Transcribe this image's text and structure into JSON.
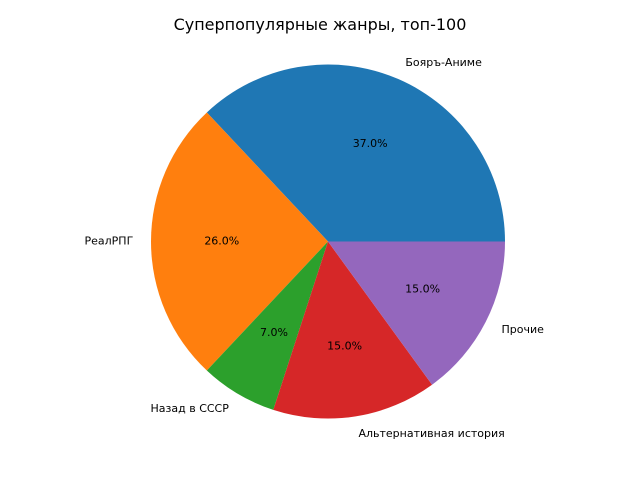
{
  "chart_data": {
    "type": "pie",
    "title": "Суперпопулярные жанры, топ-100",
    "slices": [
      {
        "label": "Бояръ-Аниме",
        "value": 37.0,
        "pct_text": "37.0%",
        "color": "#1f77b4"
      },
      {
        "label": "РеалРПГ",
        "value": 26.0,
        "pct_text": "26.0%",
        "color": "#ff7f0e"
      },
      {
        "label": "Назад в СССР",
        "value": 7.0,
        "pct_text": "7.0%",
        "color": "#2ca02c"
      },
      {
        "label": "Альтернативная история",
        "value": 15.0,
        "pct_text": "15.0%",
        "color": "#d62728"
      },
      {
        "label": "Прочие",
        "value": 15.0,
        "pct_text": "15.0%",
        "color": "#9467bd"
      }
    ],
    "start_angle_deg": 0,
    "direction": "counterclockwise",
    "legend": "none"
  }
}
